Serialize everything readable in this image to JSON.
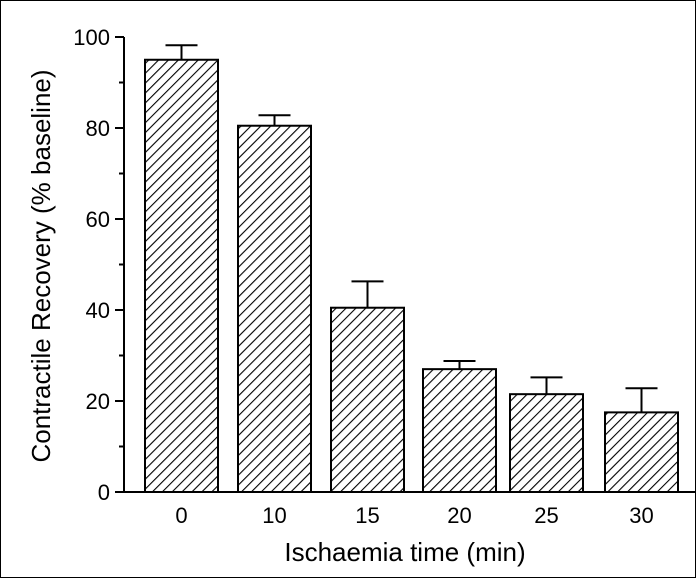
{
  "chart_data": {
    "type": "bar",
    "title": "",
    "xlabel": "Ischaemia time (min)",
    "ylabel": "Contractile Recovery (% baseline)",
    "categories": [
      "0",
      "10",
      "15",
      "20",
      "25",
      "30"
    ],
    "values": [
      95,
      80.5,
      40.5,
      27,
      21.5,
      17.5
    ],
    "error_upper": [
      98.2,
      82.8,
      46.3,
      28.8,
      25.2,
      22.8
    ],
    "ylim": [
      0,
      100
    ],
    "yticks": [
      0,
      20,
      40,
      60,
      80,
      100
    ],
    "ytick_labels": [
      "0",
      "20",
      "40",
      "60",
      "80",
      "100"
    ],
    "grid": false,
    "bar_fill": "diagonal-hatch",
    "colors": {
      "ink": "#000000",
      "background": "#ffffff"
    }
  }
}
